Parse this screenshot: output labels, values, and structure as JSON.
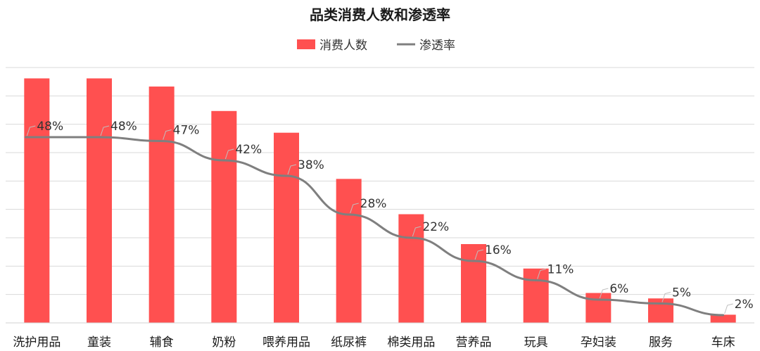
{
  "chart_data": {
    "type": "bar",
    "title": "品类消费人数和渗透率",
    "xlabel": "",
    "ylabel": "",
    "categories": [
      "洗护用品",
      "童装",
      "辅食",
      "奶粉",
      "喂养用品",
      "纸尿裤",
      "棉类用品",
      "营养品",
      "玩具",
      "孕妇装",
      "服务",
      "车床"
    ],
    "legend_position": "top",
    "grid": true,
    "series": [
      {
        "name": "消费人数",
        "kind": "bar",
        "color": "#ff5050",
        "values": [
          90,
          90,
          87,
          78,
          70,
          53,
          40,
          29,
          20,
          11,
          9,
          3
        ],
        "ylim": [
          0,
          94
        ]
      },
      {
        "name": "渗透率",
        "kind": "line",
        "color": "#7f7f7f",
        "values": [
          48,
          48,
          47,
          42,
          38,
          28,
          22,
          16,
          11,
          6,
          5,
          2
        ],
        "labels": [
          "48%",
          "48%",
          "47%",
          "42%",
          "38%",
          "28%",
          "22%",
          "16%",
          "11%",
          "6%",
          "5%",
          "2%"
        ],
        "ylim": [
          0,
          66
        ]
      }
    ]
  }
}
